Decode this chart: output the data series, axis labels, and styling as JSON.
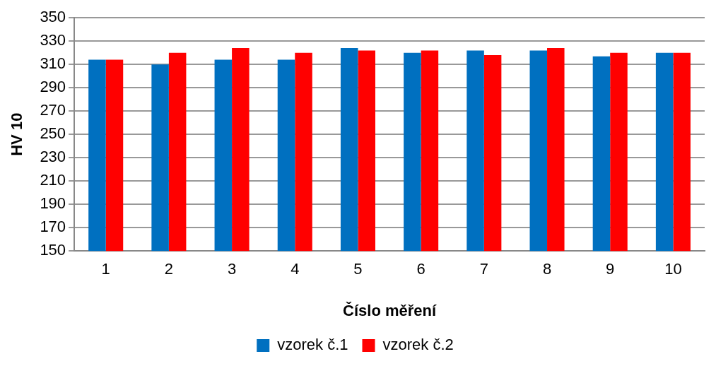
{
  "chart_data": {
    "type": "bar",
    "xlabel": "Číslo měření",
    "ylabel": "HV 10",
    "categories": [
      "1",
      "2",
      "3",
      "4",
      "5",
      "6",
      "7",
      "8",
      "9",
      "10"
    ],
    "series": [
      {
        "name": "vzorek č.1",
        "color": "#0070c0",
        "values": [
          314,
          310,
          314,
          314,
          324,
          320,
          322,
          322,
          317,
          320
        ]
      },
      {
        "name": "vzorek č.2",
        "color": "#ff0000",
        "values": [
          314,
          320,
          324,
          320,
          322,
          322,
          318,
          324,
          320,
          320
        ]
      }
    ],
    "ylim": [
      150,
      350
    ],
    "yticks": [
      150,
      170,
      190,
      210,
      230,
      250,
      270,
      290,
      310,
      330,
      350
    ],
    "grid": "y",
    "legend": "bottom"
  }
}
